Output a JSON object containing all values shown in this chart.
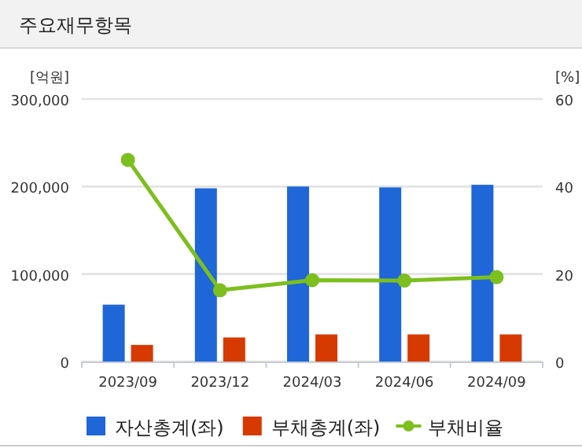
{
  "chart_data": {
    "type": "bar",
    "title": "주요재무항목",
    "ylabel": "[억원]",
    "y2label": "[%]",
    "categories": [
      "2023/09",
      "2023/12",
      "2024/03",
      "2024/06",
      "2024/09"
    ],
    "series": [
      {
        "name": "자산총계(좌)",
        "color": "#1f66d9",
        "values": [
          65000,
          198000,
          200000,
          199000,
          202000
        ]
      },
      {
        "name": "부채총계(좌)",
        "color": "#d63a00",
        "values": [
          19000,
          27500,
          31000,
          31000,
          31000
        ]
      },
      {
        "name": "부채비율",
        "type": "line",
        "axis": "y2",
        "color": "#7cbf1e",
        "values": [
          46.1,
          16.3,
          18.6,
          18.5,
          19.3
        ]
      }
    ],
    "ylim": [
      0,
      300000
    ],
    "yticks": [
      {
        "value": 0,
        "label": "0"
      },
      {
        "value": 100000,
        "label": "100,000"
      },
      {
        "value": 200000,
        "label": "200,000"
      },
      {
        "value": 300000,
        "label": "300,000"
      }
    ],
    "y2lim": [
      0,
      60
    ],
    "y2ticks": [
      0,
      20,
      40,
      60
    ],
    "grid": "y",
    "legend": "bottom",
    "marker": "circle"
  }
}
